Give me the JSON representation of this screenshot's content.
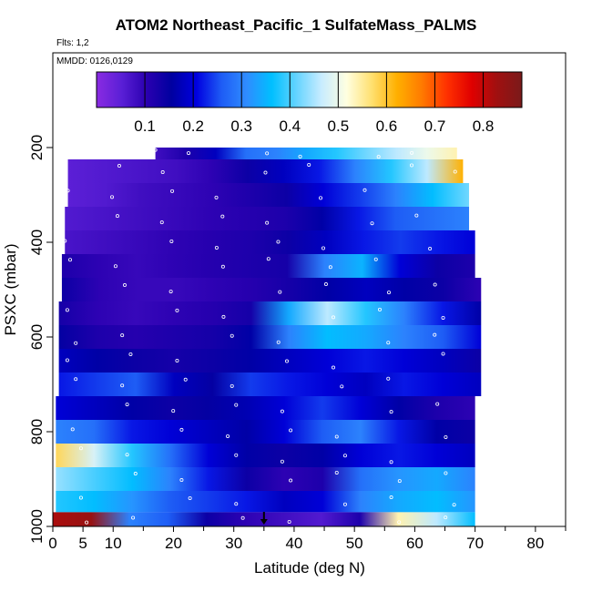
{
  "chart_data": {
    "type": "heatmap",
    "title": "ATOM2 Northeast_Pacific_1 SulfateMass_PALMS",
    "flights_note": "Flts: 1,2",
    "date_note": "MMDD: 0126,0129",
    "xlabel": "Latitude (deg N)",
    "ylabel": "PSXC (mbar)",
    "xlim": [
      0,
      85
    ],
    "ylim": [
      1000,
      0
    ],
    "x_ticks": [
      "0",
      "5",
      "10",
      "20",
      "30",
      "40",
      "50",
      "60",
      "70",
      "80"
    ],
    "y_ticks": [
      "200",
      "400",
      "600",
      "800",
      "1000"
    ],
    "colorbar": {
      "ticks": [
        "0.1",
        "0.2",
        "0.3",
        "0.4",
        "0.5",
        "0.6",
        "0.7",
        "0.8"
      ],
      "range": [
        0,
        0.88
      ],
      "colors": [
        "#8a2be2",
        "#5a1fd6",
        "#2a00b0",
        "#0000a0",
        "#0000e0",
        "#1e5cf5",
        "#2f8cff",
        "#00bfff",
        "#66d4ff",
        "#c8ecff",
        "#ffffe0",
        "#ffe070",
        "#ffb000",
        "#ff7a00",
        "#ff3000",
        "#e00000",
        "#a01010",
        "#7a1a1a"
      ]
    },
    "series": [
      {
        "p": 200,
        "lat0": 17,
        "lat1": 67,
        "values": [
          0.08,
          0.12,
          0.18,
          0.28,
          0.3,
          0.34,
          0.38,
          0.42,
          0.46,
          0.5,
          0.54
        ]
      },
      {
        "p": 250,
        "lat0": 2.5,
        "lat1": 68,
        "values": [
          0.05,
          0.06,
          0.07,
          0.08,
          0.1,
          0.14,
          0.18,
          0.22,
          0.3,
          0.38,
          0.46,
          0.62
        ]
      },
      {
        "p": 300,
        "lat0": 2.5,
        "lat1": 69,
        "values": [
          0.05,
          0.06,
          0.08,
          0.09,
          0.1,
          0.12,
          0.14,
          0.2,
          0.24,
          0.3,
          0.36,
          0.42
        ]
      },
      {
        "p": 350,
        "lat0": 2,
        "lat1": 69,
        "values": [
          0.06,
          0.07,
          0.08,
          0.09,
          0.1,
          0.11,
          0.12,
          0.16,
          0.22,
          0.26,
          0.28,
          0.3
        ]
      },
      {
        "p": 400,
        "lat0": 2,
        "lat1": 70,
        "values": [
          0.07,
          0.08,
          0.09,
          0.1,
          0.11,
          0.12,
          0.14,
          0.18,
          0.22,
          0.24,
          0.22,
          0.2
        ]
      },
      {
        "p": 450,
        "lat0": 1.5,
        "lat1": 70,
        "values": [
          0.12,
          0.1,
          0.09,
          0.1,
          0.11,
          0.12,
          0.13,
          0.3,
          0.35,
          0.2,
          0.14,
          0.12
        ]
      },
      {
        "p": 500,
        "lat0": 1.5,
        "lat1": 71,
        "values": [
          0.14,
          0.1,
          0.09,
          0.09,
          0.1,
          0.11,
          0.13,
          0.16,
          0.18,
          0.16,
          0.14,
          0.1
        ]
      },
      {
        "p": 550,
        "lat0": 1,
        "lat1": 71,
        "values": [
          0.13,
          0.1,
          0.09,
          0.1,
          0.11,
          0.13,
          0.34,
          0.46,
          0.38,
          0.3,
          0.22,
          0.16
        ]
      },
      {
        "p": 600,
        "lat0": 1,
        "lat1": 71,
        "values": [
          0.15,
          0.12,
          0.11,
          0.12,
          0.13,
          0.16,
          0.3,
          0.36,
          0.34,
          0.3,
          0.26,
          0.2
        ]
      },
      {
        "p": 650,
        "lat0": 1,
        "lat1": 71,
        "values": [
          0.18,
          0.16,
          0.14,
          0.13,
          0.14,
          0.16,
          0.18,
          0.2,
          0.22,
          0.2,
          0.18,
          0.14
        ]
      },
      {
        "p": 700,
        "lat0": 1,
        "lat1": 71,
        "values": [
          0.22,
          0.24,
          0.26,
          0.18,
          0.15,
          0.24,
          0.22,
          0.2,
          0.18,
          0.22,
          0.2,
          0.18
        ]
      },
      {
        "p": 750,
        "lat0": 0.5,
        "lat1": 70,
        "values": [
          0.2,
          0.18,
          0.16,
          0.14,
          0.15,
          0.17,
          0.2,
          0.24,
          0.2,
          0.16,
          0.12,
          0.1
        ]
      },
      {
        "p": 800,
        "lat0": 0.5,
        "lat1": 70,
        "values": [
          0.3,
          0.28,
          0.22,
          0.2,
          0.18,
          0.16,
          0.2,
          0.26,
          0.3,
          0.22,
          0.16,
          0.14
        ]
      },
      {
        "p": 850,
        "lat0": 0.5,
        "lat1": 70,
        "values": [
          0.58,
          0.48,
          0.38,
          0.28,
          0.2,
          0.16,
          0.14,
          0.16,
          0.2,
          0.22,
          0.2,
          0.18
        ]
      },
      {
        "p": 900,
        "lat0": 0.5,
        "lat1": 70,
        "values": [
          0.44,
          0.4,
          0.36,
          0.3,
          0.22,
          0.14,
          0.1,
          0.12,
          0.28,
          0.32,
          0.34,
          0.3
        ]
      },
      {
        "p": 950,
        "lat0": 0.5,
        "lat1": 70,
        "values": [
          0.38,
          0.36,
          0.32,
          0.26,
          0.24,
          0.22,
          0.18,
          0.2,
          0.3,
          0.34,
          0.36,
          0.32
        ]
      },
      {
        "p": 990,
        "lat0": 0,
        "lat1": 70,
        "values": [
          0.82,
          0.84,
          0.3,
          0.26,
          0.14,
          0.1,
          0.08,
          0.06,
          0.12,
          0.54,
          0.46,
          0.36
        ]
      }
    ],
    "annotations": [
      "▼ at lat 35"
    ]
  }
}
